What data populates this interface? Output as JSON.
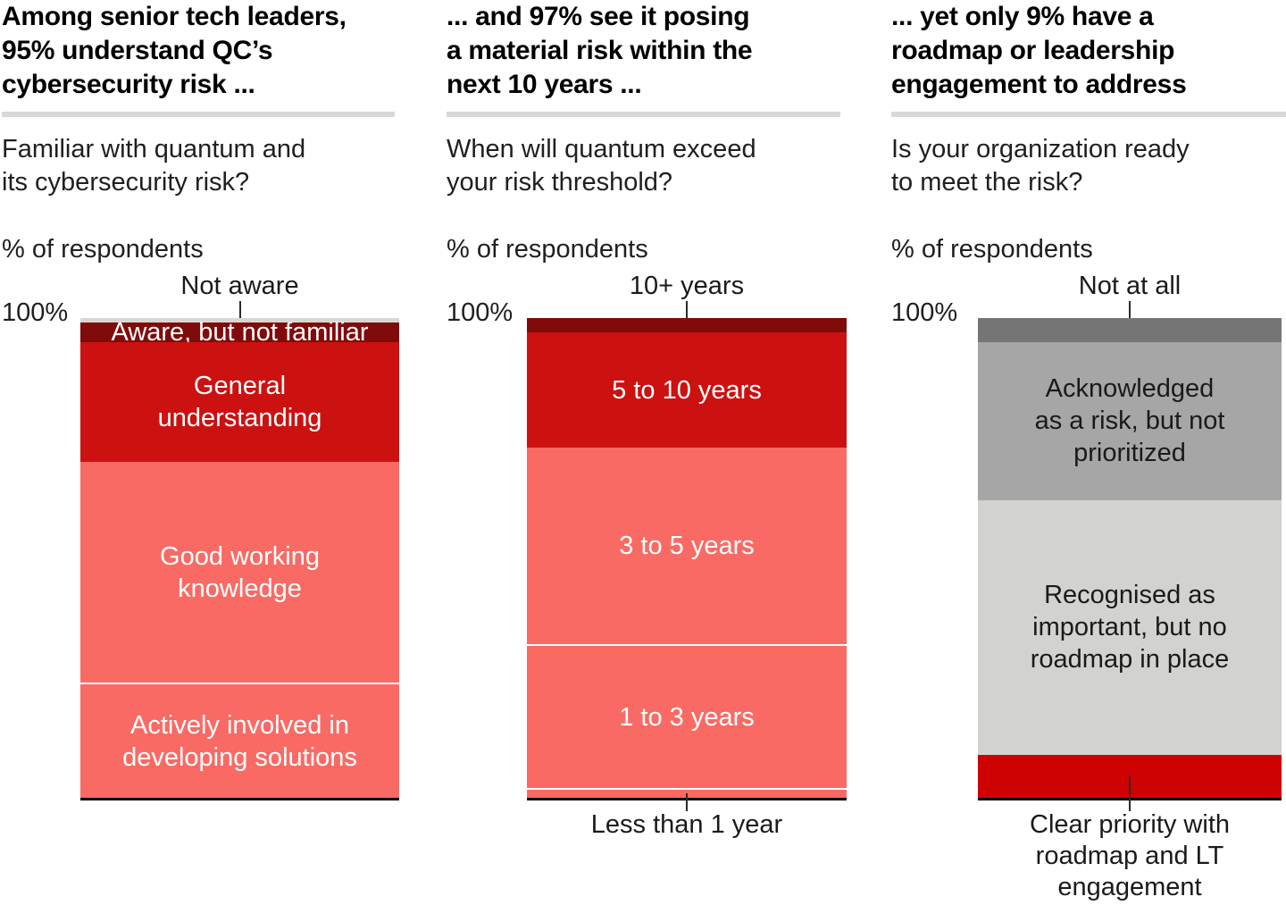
{
  "page": {
    "background": "#ffffff",
    "axis_color": "#000000",
    "rule_color": "#d8d8d8"
  },
  "chart_data": [
    {
      "type": "bar",
      "stacked": true,
      "orientation": "vertical-100pct",
      "headline": "Among senior tech leaders,\n95% understand QC’s\ncybersecurity risk ...",
      "question": "Familiar with quantum and\nits cybersecurity risk?",
      "unit_label": "% of respondents",
      "axis_top_label": "100%",
      "ylim": [
        0,
        100
      ],
      "segments": [
        {
          "label": "Not aware",
          "value": 1,
          "color": "#d8d8d3",
          "placement": "callout-top",
          "text_color": "#1a1a1a"
        },
        {
          "label": "Aware, but not familiar",
          "value": 4,
          "color": "#800b0b",
          "placement": "inside",
          "text_color": "#ffffff"
        },
        {
          "label": "General\nunderstanding",
          "value": 25,
          "color": "#cc1111",
          "placement": "inside",
          "text_color": "#ffffff"
        },
        {
          "label": "Good working\nknowledge",
          "value": 46,
          "color": "#fa6a64",
          "placement": "inside",
          "text_color": "#ffffff"
        },
        {
          "label": "Actively involved in\ndeveloping solutions",
          "value": 24,
          "color": "#fa6a64",
          "placement": "inside",
          "text_color": "#ffffff"
        }
      ]
    },
    {
      "type": "bar",
      "stacked": true,
      "orientation": "vertical-100pct",
      "headline": "... and 97% see it posing\na material risk within the\nnext 10 years ...",
      "question": "When will quantum exceed\nyour risk threshold?",
      "unit_label": "% of respondents",
      "axis_top_label": "100%",
      "ylim": [
        0,
        100
      ],
      "segments": [
        {
          "label": "10+ years",
          "value": 3,
          "color": "#800b0b",
          "placement": "callout-top",
          "text_color": "#1a1a1a"
        },
        {
          "label": "5 to 10 years",
          "value": 24,
          "color": "#cc1111",
          "placement": "inside",
          "text_color": "#ffffff"
        },
        {
          "label": "3 to 5 years",
          "value": 41,
          "color": "#fa6a64",
          "placement": "inside",
          "text_color": "#ffffff"
        },
        {
          "label": "1 to 3 years",
          "value": 30,
          "color": "#fa6a64",
          "placement": "inside",
          "text_color": "#ffffff"
        },
        {
          "label": "Less than 1 year",
          "value": 2,
          "color": "#fa6a64",
          "placement": "callout-bottom",
          "text_color": "#1a1a1a"
        }
      ]
    },
    {
      "type": "bar",
      "stacked": true,
      "orientation": "vertical-100pct",
      "headline": "... yet only 9% have a\nroadmap or leadership\nengagement to address",
      "question": "Is your organization ready\nto meet the risk?",
      "unit_label": "% of respondents",
      "axis_top_label": "100%",
      "ylim": [
        0,
        100
      ],
      "segments": [
        {
          "label": "Not at all",
          "value": 5,
          "color": "#757575",
          "placement": "callout-top",
          "text_color": "#1a1a1a"
        },
        {
          "label": "Acknowledged\nas a risk, but not\nprioritized",
          "value": 33,
          "color": "#a6a6a6",
          "placement": "inside",
          "text_color": "#1a1a1a"
        },
        {
          "label": "Recognised as\nimportant, but no\nroadmap in place",
          "value": 53,
          "color": "#d2d2cf",
          "placement": "inside",
          "text_color": "#1a1a1a"
        },
        {
          "label": "Clear priority with\nroadmap and LT\nengagement",
          "value": 9,
          "color": "#cf0202",
          "placement": "callout-bottom",
          "text_color": "#1a1a1a"
        }
      ]
    }
  ]
}
